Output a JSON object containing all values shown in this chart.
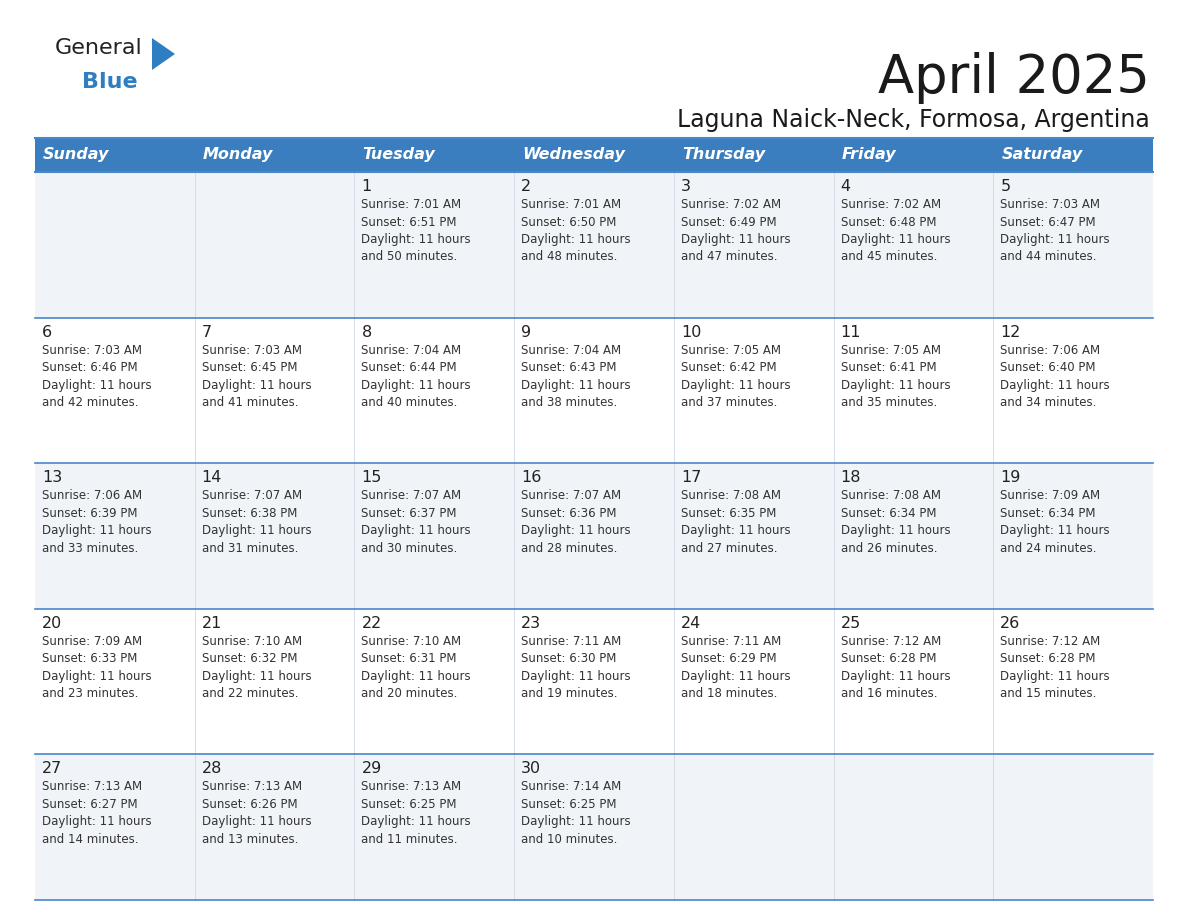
{
  "title": "April 2025",
  "subtitle": "Laguna Naick-Neck, Formosa, Argentina",
  "header_bg_color": "#3a7ebf",
  "header_text_color": "#ffffff",
  "row_bg_even": "#f0f4f8",
  "row_bg_odd": "#ffffff",
  "border_color": "#4a86c8",
  "text_color": "#333333",
  "days_of_week": [
    "Sunday",
    "Monday",
    "Tuesday",
    "Wednesday",
    "Thursday",
    "Friday",
    "Saturday"
  ],
  "calendar_data": [
    [
      {
        "day": "",
        "sunrise": "",
        "sunset": "",
        "daylight": ""
      },
      {
        "day": "",
        "sunrise": "",
        "sunset": "",
        "daylight": ""
      },
      {
        "day": "1",
        "sunrise": "Sunrise: 7:01 AM",
        "sunset": "Sunset: 6:51 PM",
        "daylight": "Daylight: 11 hours\nand 50 minutes."
      },
      {
        "day": "2",
        "sunrise": "Sunrise: 7:01 AM",
        "sunset": "Sunset: 6:50 PM",
        "daylight": "Daylight: 11 hours\nand 48 minutes."
      },
      {
        "day": "3",
        "sunrise": "Sunrise: 7:02 AM",
        "sunset": "Sunset: 6:49 PM",
        "daylight": "Daylight: 11 hours\nand 47 minutes."
      },
      {
        "day": "4",
        "sunrise": "Sunrise: 7:02 AM",
        "sunset": "Sunset: 6:48 PM",
        "daylight": "Daylight: 11 hours\nand 45 minutes."
      },
      {
        "day": "5",
        "sunrise": "Sunrise: 7:03 AM",
        "sunset": "Sunset: 6:47 PM",
        "daylight": "Daylight: 11 hours\nand 44 minutes."
      }
    ],
    [
      {
        "day": "6",
        "sunrise": "Sunrise: 7:03 AM",
        "sunset": "Sunset: 6:46 PM",
        "daylight": "Daylight: 11 hours\nand 42 minutes."
      },
      {
        "day": "7",
        "sunrise": "Sunrise: 7:03 AM",
        "sunset": "Sunset: 6:45 PM",
        "daylight": "Daylight: 11 hours\nand 41 minutes."
      },
      {
        "day": "8",
        "sunrise": "Sunrise: 7:04 AM",
        "sunset": "Sunset: 6:44 PM",
        "daylight": "Daylight: 11 hours\nand 40 minutes."
      },
      {
        "day": "9",
        "sunrise": "Sunrise: 7:04 AM",
        "sunset": "Sunset: 6:43 PM",
        "daylight": "Daylight: 11 hours\nand 38 minutes."
      },
      {
        "day": "10",
        "sunrise": "Sunrise: 7:05 AM",
        "sunset": "Sunset: 6:42 PM",
        "daylight": "Daylight: 11 hours\nand 37 minutes."
      },
      {
        "day": "11",
        "sunrise": "Sunrise: 7:05 AM",
        "sunset": "Sunset: 6:41 PM",
        "daylight": "Daylight: 11 hours\nand 35 minutes."
      },
      {
        "day": "12",
        "sunrise": "Sunrise: 7:06 AM",
        "sunset": "Sunset: 6:40 PM",
        "daylight": "Daylight: 11 hours\nand 34 minutes."
      }
    ],
    [
      {
        "day": "13",
        "sunrise": "Sunrise: 7:06 AM",
        "sunset": "Sunset: 6:39 PM",
        "daylight": "Daylight: 11 hours\nand 33 minutes."
      },
      {
        "day": "14",
        "sunrise": "Sunrise: 7:07 AM",
        "sunset": "Sunset: 6:38 PM",
        "daylight": "Daylight: 11 hours\nand 31 minutes."
      },
      {
        "day": "15",
        "sunrise": "Sunrise: 7:07 AM",
        "sunset": "Sunset: 6:37 PM",
        "daylight": "Daylight: 11 hours\nand 30 minutes."
      },
      {
        "day": "16",
        "sunrise": "Sunrise: 7:07 AM",
        "sunset": "Sunset: 6:36 PM",
        "daylight": "Daylight: 11 hours\nand 28 minutes."
      },
      {
        "day": "17",
        "sunrise": "Sunrise: 7:08 AM",
        "sunset": "Sunset: 6:35 PM",
        "daylight": "Daylight: 11 hours\nand 27 minutes."
      },
      {
        "day": "18",
        "sunrise": "Sunrise: 7:08 AM",
        "sunset": "Sunset: 6:34 PM",
        "daylight": "Daylight: 11 hours\nand 26 minutes."
      },
      {
        "day": "19",
        "sunrise": "Sunrise: 7:09 AM",
        "sunset": "Sunset: 6:34 PM",
        "daylight": "Daylight: 11 hours\nand 24 minutes."
      }
    ],
    [
      {
        "day": "20",
        "sunrise": "Sunrise: 7:09 AM",
        "sunset": "Sunset: 6:33 PM",
        "daylight": "Daylight: 11 hours\nand 23 minutes."
      },
      {
        "day": "21",
        "sunrise": "Sunrise: 7:10 AM",
        "sunset": "Sunset: 6:32 PM",
        "daylight": "Daylight: 11 hours\nand 22 minutes."
      },
      {
        "day": "22",
        "sunrise": "Sunrise: 7:10 AM",
        "sunset": "Sunset: 6:31 PM",
        "daylight": "Daylight: 11 hours\nand 20 minutes."
      },
      {
        "day": "23",
        "sunrise": "Sunrise: 7:11 AM",
        "sunset": "Sunset: 6:30 PM",
        "daylight": "Daylight: 11 hours\nand 19 minutes."
      },
      {
        "day": "24",
        "sunrise": "Sunrise: 7:11 AM",
        "sunset": "Sunset: 6:29 PM",
        "daylight": "Daylight: 11 hours\nand 18 minutes."
      },
      {
        "day": "25",
        "sunrise": "Sunrise: 7:12 AM",
        "sunset": "Sunset: 6:28 PM",
        "daylight": "Daylight: 11 hours\nand 16 minutes."
      },
      {
        "day": "26",
        "sunrise": "Sunrise: 7:12 AM",
        "sunset": "Sunset: 6:28 PM",
        "daylight": "Daylight: 11 hours\nand 15 minutes."
      }
    ],
    [
      {
        "day": "27",
        "sunrise": "Sunrise: 7:13 AM",
        "sunset": "Sunset: 6:27 PM",
        "daylight": "Daylight: 11 hours\nand 14 minutes."
      },
      {
        "day": "28",
        "sunrise": "Sunrise: 7:13 AM",
        "sunset": "Sunset: 6:26 PM",
        "daylight": "Daylight: 11 hours\nand 13 minutes."
      },
      {
        "day": "29",
        "sunrise": "Sunrise: 7:13 AM",
        "sunset": "Sunset: 6:25 PM",
        "daylight": "Daylight: 11 hours\nand 11 minutes."
      },
      {
        "day": "30",
        "sunrise": "Sunrise: 7:14 AM",
        "sunset": "Sunset: 6:25 PM",
        "daylight": "Daylight: 11 hours\nand 10 minutes."
      },
      {
        "day": "",
        "sunrise": "",
        "sunset": "",
        "daylight": ""
      },
      {
        "day": "",
        "sunrise": "",
        "sunset": "",
        "daylight": ""
      },
      {
        "day": "",
        "sunrise": "",
        "sunset": "",
        "daylight": ""
      }
    ]
  ]
}
